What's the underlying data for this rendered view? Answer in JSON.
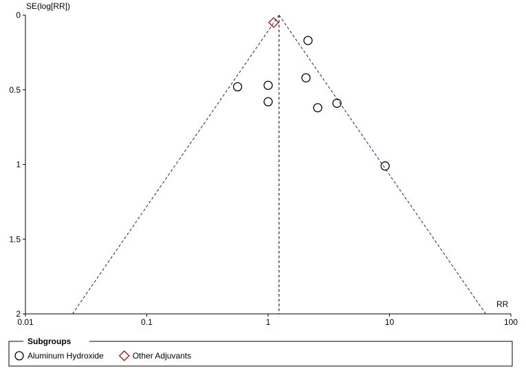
{
  "chart_data": {
    "type": "scatter",
    "y_label": "SE(log[RR])",
    "x_label": "RR",
    "x_scale": "log",
    "y_inverted": true,
    "xlim": [
      0.01,
      100
    ],
    "ylim": [
      0,
      2
    ],
    "xticks": [
      0.01,
      0.1,
      1,
      10,
      100
    ],
    "yticks": [
      0,
      0.5,
      1,
      1.5,
      2
    ],
    "summary_rr": 1.23,
    "funnel_color": "#1a1a8c",
    "legend_title": "Subgroups",
    "series": [
      {
        "name": "Aluminum Hydroxide",
        "marker": "circle",
        "color": "#000000",
        "x": [
          2.13,
          0.56,
          1.0,
          1.0,
          2.05,
          3.69,
          2.56,
          9.2
        ],
        "values": [
          0.17,
          0.48,
          0.47,
          0.58,
          0.42,
          0.59,
          0.62,
          1.01
        ]
      },
      {
        "name": "Other Adjuvants",
        "marker": "diamond",
        "color": "#8b1a1a",
        "x": [
          1.11
        ],
        "values": [
          0.05
        ]
      }
    ]
  }
}
